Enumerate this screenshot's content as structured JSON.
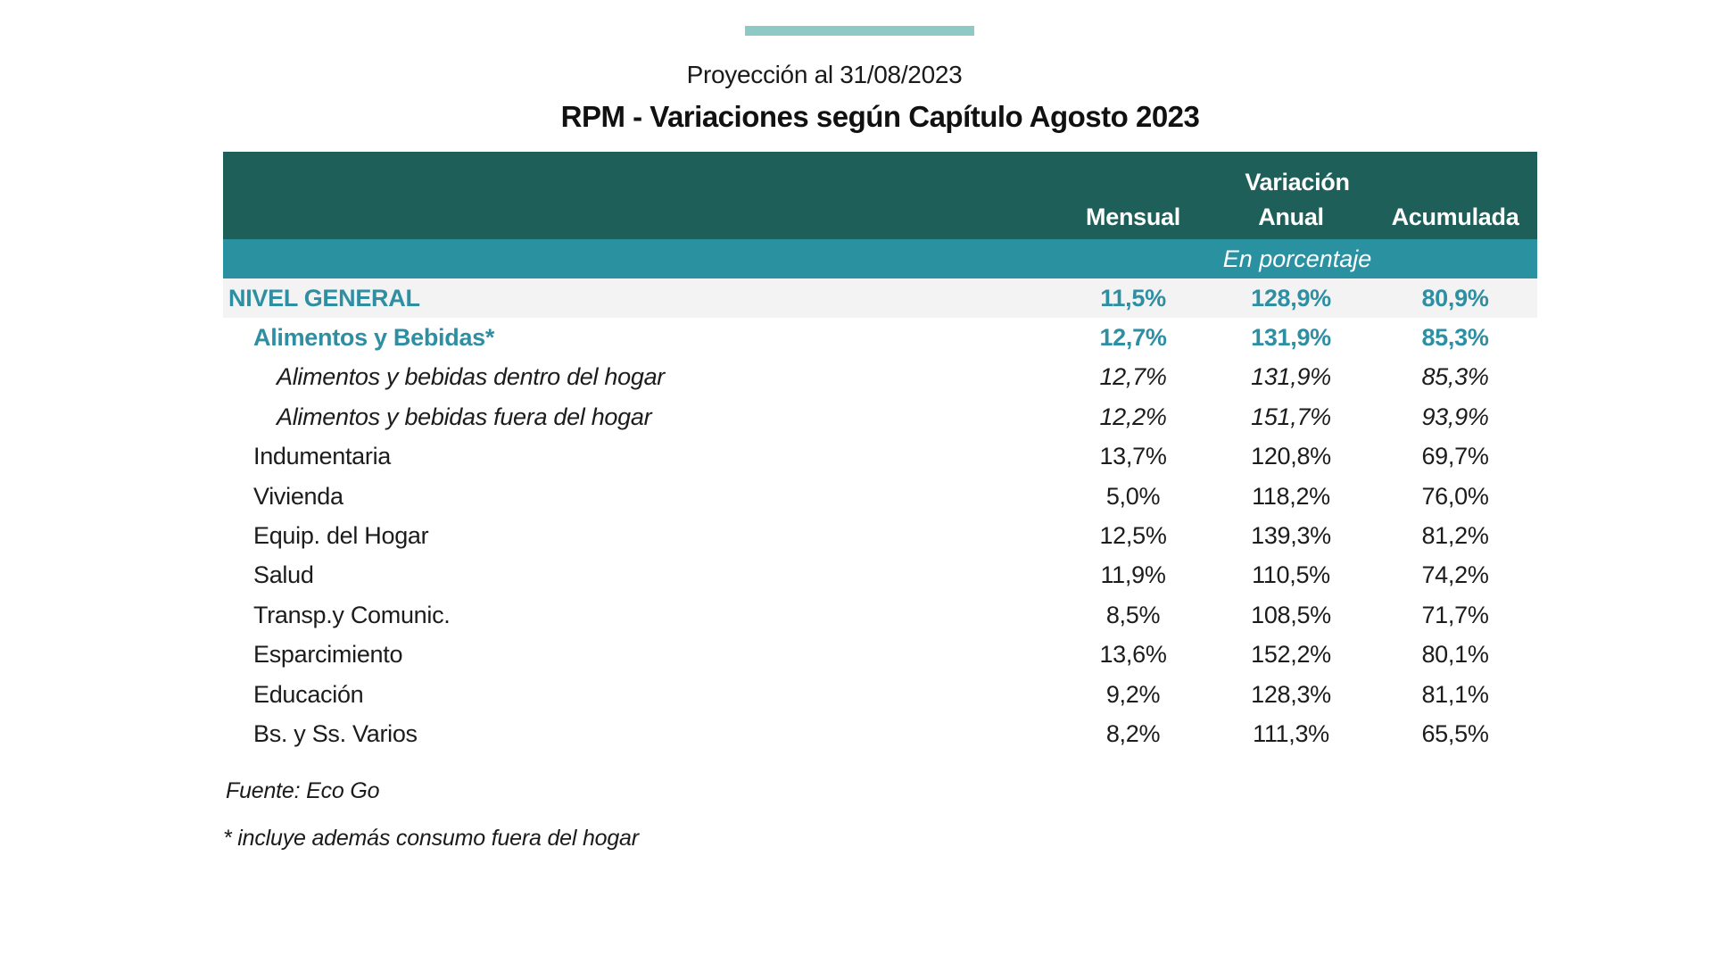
{
  "page": {
    "subtitle": "Proyección al 31/08/2023",
    "title": "RPM - Variaciones según Capítulo Agosto 2023"
  },
  "table": {
    "header": {
      "group_label": "Variación",
      "columns": [
        "Mensual",
        "Anual",
        "Acumulada"
      ],
      "unit_label": "En porcentaje"
    },
    "rows": [
      {
        "label": "NIVEL GENERAL",
        "mensual": "11,5%",
        "anual": "128,9%",
        "acumulada": "80,9%",
        "style": "total"
      },
      {
        "label": "Alimentos y Bebidas*",
        "mensual": "12,7%",
        "anual": "131,9%",
        "acumulada": "85,3%",
        "style": "highlight"
      },
      {
        "label": "Alimentos y bebidas dentro del hogar",
        "mensual": "12,7%",
        "anual": "131,9%",
        "acumulada": "85,3%",
        "style": "sub"
      },
      {
        "label": "Alimentos y bebidas fuera del hogar",
        "mensual": "12,2%",
        "anual": "151,7%",
        "acumulada": "93,9%",
        "style": "sub"
      },
      {
        "label": "Indumentaria",
        "mensual": "13,7%",
        "anual": "120,8%",
        "acumulada": "69,7%",
        "style": "chapter"
      },
      {
        "label": "Vivienda",
        "mensual": "5,0%",
        "anual": "118,2%",
        "acumulada": "76,0%",
        "style": "chapter"
      },
      {
        "label": "Equip. del Hogar",
        "mensual": "12,5%",
        "anual": "139,3%",
        "acumulada": "81,2%",
        "style": "chapter"
      },
      {
        "label": "Salud",
        "mensual": "11,9%",
        "anual": "110,5%",
        "acumulada": "74,2%",
        "style": "chapter"
      },
      {
        "label": "Transp.y Comunic.",
        "mensual": "8,5%",
        "anual": "108,5%",
        "acumulada": "71,7%",
        "style": "chapter"
      },
      {
        "label": "Esparcimiento",
        "mensual": "13,6%",
        "anual": "152,2%",
        "acumulada": "80,1%",
        "style": "chapter"
      },
      {
        "label": "Educación",
        "mensual": "9,2%",
        "anual": "128,3%",
        "acumulada": "81,1%",
        "style": "chapter"
      },
      {
        "label": "Bs. y Ss. Varios",
        "mensual": "8,2%",
        "anual": "111,3%",
        "acumulada": "65,5%",
        "style": "chapter"
      }
    ]
  },
  "footnotes": {
    "source": "Fuente: Eco Go",
    "asterisk": "* incluye además consumo fuera del hogar"
  },
  "colors": {
    "accent-bar": "#8fc9c5",
    "header-dark": "#1e5f5a",
    "band-teal": "#2a91a1",
    "teal-text": "#2e8fa3",
    "row-gray": "#f3f3f3"
  },
  "chart_data": {
    "type": "table",
    "title": "RPM - Variaciones según Capítulo Agosto 2023",
    "subtitle": "Proyección al 31/08/2023",
    "unit": "En porcentaje",
    "columns": [
      "Mensual",
      "Anual",
      "Acumulada"
    ],
    "rows": [
      {
        "category": "NIVEL GENERAL",
        "mensual": 11.5,
        "anual": 128.9,
        "acumulada": 80.9
      },
      {
        "category": "Alimentos y Bebidas*",
        "mensual": 12.7,
        "anual": 131.9,
        "acumulada": 85.3
      },
      {
        "category": "Alimentos y bebidas dentro del hogar",
        "mensual": 12.7,
        "anual": 131.9,
        "acumulada": 85.3
      },
      {
        "category": "Alimentos y bebidas fuera del hogar",
        "mensual": 12.2,
        "anual": 151.7,
        "acumulada": 93.9
      },
      {
        "category": "Indumentaria",
        "mensual": 13.7,
        "anual": 120.8,
        "acumulada": 69.7
      },
      {
        "category": "Vivienda",
        "mensual": 5.0,
        "anual": 118.2,
        "acumulada": 76.0
      },
      {
        "category": "Equip. del Hogar",
        "mensual": 12.5,
        "anual": 139.3,
        "acumulada": 81.2
      },
      {
        "category": "Salud",
        "mensual": 11.9,
        "anual": 110.5,
        "acumulada": 74.2
      },
      {
        "category": "Transp.y Comunic.",
        "mensual": 8.5,
        "anual": 108.5,
        "acumulada": 71.7
      },
      {
        "category": "Esparcimiento",
        "mensual": 13.6,
        "anual": 152.2,
        "acumulada": 80.1
      },
      {
        "category": "Educación",
        "mensual": 9.2,
        "anual": 128.3,
        "acumulada": 81.1
      },
      {
        "category": "Bs. y Ss. Varios",
        "mensual": 8.2,
        "anual": 111.3,
        "acumulada": 65.5
      }
    ],
    "source": "Fuente: Eco Go",
    "note": "* incluye además consumo fuera del hogar"
  }
}
